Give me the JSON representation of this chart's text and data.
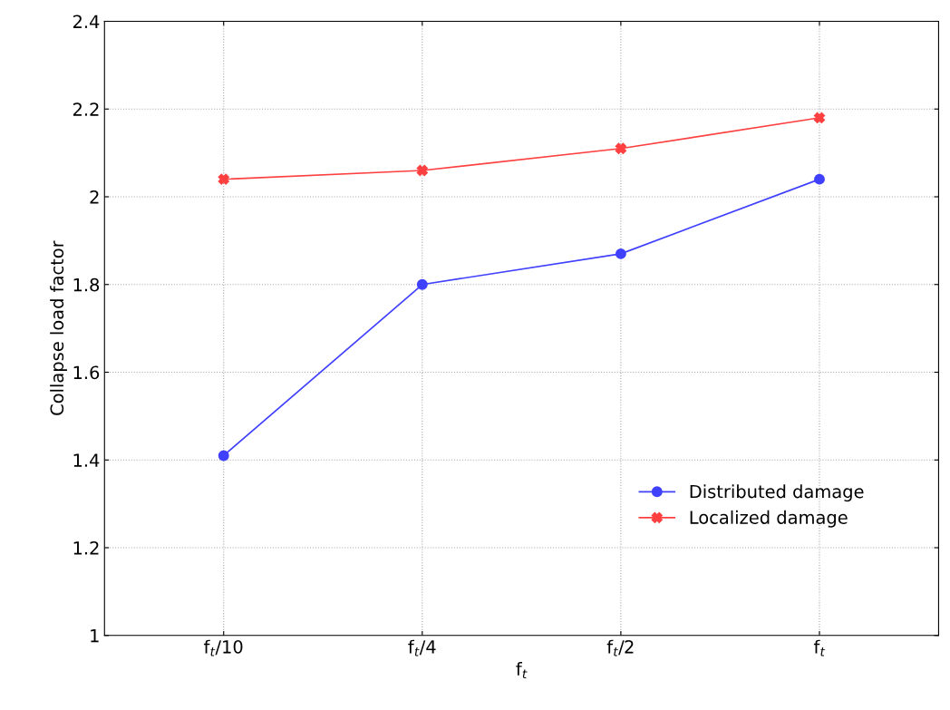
{
  "chart_data": {
    "type": "line",
    "xlabel": "f$_{t}$",
    "ylabel": "Collapse load factor",
    "categories": [
      "f$_{t}$/10",
      "f$_{t}$/4",
      "f$_{t}$/2",
      "f$_{t}$"
    ],
    "ylim": [
      1,
      2.4
    ],
    "yticks": [
      1,
      1.2,
      1.4,
      1.6,
      1.8,
      2,
      2.2,
      2.4
    ],
    "series": [
      {
        "name": "Distributed damage",
        "color": "#4040ff",
        "marker": "circle",
        "values": [
          1.41,
          1.8,
          1.87,
          2.04
        ]
      },
      {
        "name": "Localized damage",
        "color": "#ff4040",
        "marker": "cross",
        "values": [
          2.04,
          2.06,
          2.11,
          2.18
        ]
      }
    ],
    "grid": true,
    "legend": "bottom right",
    "line_style": "solid"
  }
}
